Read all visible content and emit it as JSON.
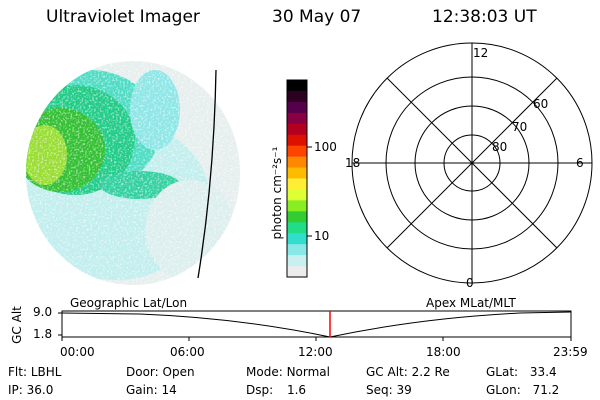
{
  "header": {
    "instrument": "Ultraviolet Imager",
    "date": "30 May 07",
    "time": "12:38:03 UT"
  },
  "colorbar": {
    "unit_label": "photon cm⁻²s⁻¹",
    "ticks": [
      "100",
      "10"
    ],
    "colors": [
      "#000000",
      "#2b0020",
      "#55004a",
      "#880044",
      "#b30022",
      "#dd1100",
      "#ff4400",
      "#ff8800",
      "#ffbb00",
      "#ffee33",
      "#ddff33",
      "#88ee22",
      "#33cc33",
      "#22dd88",
      "#33ddcc",
      "#88e8e8",
      "#c8f0f0",
      "#ececec"
    ]
  },
  "polar_plot": {
    "lat_labels": [
      "60",
      "70",
      "80"
    ],
    "mlt_labels": [
      "12",
      "18",
      "6",
      "0"
    ]
  },
  "timeline": {
    "ylabel": "GC Alt",
    "yticks": [
      "9.0",
      "1.8"
    ],
    "left_label": "Geographic Lat/Lon",
    "right_label": "Apex MLat/MLT",
    "time_ticks": [
      "00:00",
      "06:00",
      "12:00",
      "18:00",
      "23:59"
    ],
    "current_marker_color": "#ff0000"
  },
  "status": {
    "row1": [
      {
        "k": "Flt:",
        "v": "LBHL"
      },
      {
        "k": "Door:",
        "v": "Open"
      },
      {
        "k": "Mode:",
        "v": "Normal"
      },
      {
        "k": "GC Alt:",
        "v": "2.2 Re"
      },
      {
        "k": "GLat:",
        "v": "33.4"
      }
    ],
    "row2": [
      {
        "k": "IP:",
        "v": "36.0"
      },
      {
        "k": "Gain:",
        "v": "14"
      },
      {
        "k": "Dsp:",
        "v": "1.6"
      },
      {
        "k": "Seq:",
        "v": "39"
      },
      {
        "k": "GLon:",
        "v": "71.2"
      }
    ]
  }
}
